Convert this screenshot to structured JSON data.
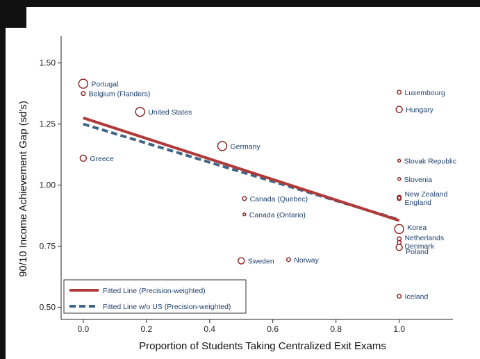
{
  "chart_data": {
    "type": "scatter",
    "xlabel": "Proportion of Students Taking Centralized Exit Exams",
    "ylabel": "90/10 Income Achievement Gap (sd's)",
    "xlim": [
      -0.07,
      1.17
    ],
    "ylim": [
      0.45,
      1.61
    ],
    "xticks": [
      "0.0",
      "0.2",
      "0.4",
      "0.6",
      "0.8",
      "1.0"
    ],
    "xtick_values": [
      0,
      0.2,
      0.4,
      0.6,
      0.8,
      1.0
    ],
    "yticks": [
      "0.50",
      "0.75",
      "1.00",
      "1.25",
      "1.50"
    ],
    "ytick_values": [
      0.5,
      0.75,
      1.0,
      1.25,
      1.5
    ],
    "grid": false,
    "legend_position": "bottom-left",
    "colors": {
      "marker": "#8b1a1a",
      "fit": "#b03a3a",
      "fit_wo_us": "#3f6687",
      "label": "#1f3f6e"
    },
    "points": [
      {
        "label": "Portugal",
        "x": 0.0,
        "y": 1.415,
        "size": "large"
      },
      {
        "label": "Belgium (Flanders)",
        "x": 0.0,
        "y": 1.375,
        "size": "small"
      },
      {
        "label": "United States",
        "x": 0.18,
        "y": 1.3,
        "size": "large"
      },
      {
        "label": "Greece",
        "x": 0.0,
        "y": 1.11,
        "size": "medium"
      },
      {
        "label": "Germany",
        "x": 0.44,
        "y": 1.16,
        "size": "large"
      },
      {
        "label": "Canada (Quebec)",
        "x": 0.51,
        "y": 0.945,
        "size": "small"
      },
      {
        "label": "Canada (Ontario)",
        "x": 0.51,
        "y": 0.88,
        "size": "tiny"
      },
      {
        "label": "Sweden",
        "x": 0.5,
        "y": 0.69,
        "size": "medium"
      },
      {
        "label": "Norway",
        "x": 0.65,
        "y": 0.695,
        "size": "small"
      },
      {
        "label": "Luxembourg",
        "x": 1.0,
        "y": 1.38,
        "size": "small"
      },
      {
        "label": "Hungary",
        "x": 1.0,
        "y": 1.31,
        "size": "medium"
      },
      {
        "label": "Slovak Republic",
        "x": 1.0,
        "y": 1.1,
        "size": "tiny"
      },
      {
        "label": "Slovenia",
        "x": 1.0,
        "y": 1.025,
        "size": "tiny"
      },
      {
        "label": "New Zealand",
        "x": 1.0,
        "y": 0.95,
        "size": "small"
      },
      {
        "label": "England",
        "x": 1.0,
        "y": 0.945,
        "size": "small"
      },
      {
        "label": "Korea",
        "x": 1.0,
        "y": 0.82,
        "size": "large"
      },
      {
        "label": "Netherlands",
        "x": 1.0,
        "y": 0.78,
        "size": "small"
      },
      {
        "label": "Denmark",
        "x": 1.0,
        "y": 0.765,
        "size": "small"
      },
      {
        "label": "Poland",
        "x": 1.0,
        "y": 0.745,
        "size": "medium"
      },
      {
        "label": "Iceland",
        "x": 1.0,
        "y": 0.545,
        "size": "small"
      }
    ],
    "series": [
      {
        "name": "Fitted Line (Precision-weighted)",
        "type": "line",
        "x": [
          0,
          1
        ],
        "y": [
          1.275,
          0.855
        ]
      },
      {
        "name": "Fitted Line w/o US (Precision-weighted)",
        "type": "line",
        "dashed": true,
        "x": [
          0,
          1
        ],
        "y": [
          1.25,
          0.858
        ]
      }
    ]
  }
}
